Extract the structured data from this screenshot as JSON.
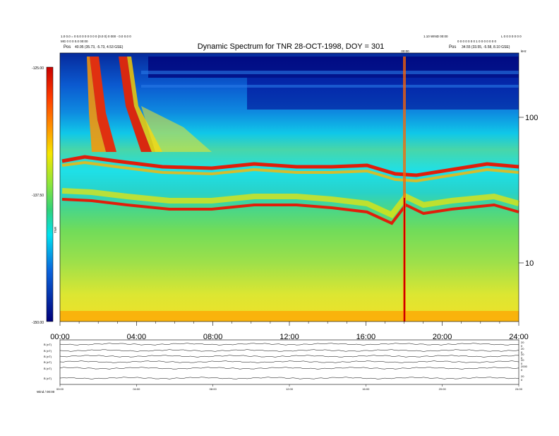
{
  "chart_data": [
    {
      "type": "heatmap",
      "title": "Dynamic Spectrum for TNR 28-OCT-1998, DOY = 301",
      "header_left_line1": "1.0 0.0 = 0 0.0 0 0 0 0 0 0 (0.0 0) 0 000 - 0.0 0.0 0",
      "header_left_line2": "MG 0 0 0 0.0 00:00",
      "header_left_pos_label": "Pos",
      "header_left_pos_value": "40.95 (35.73, -5.73, 4.53 GSE)",
      "header_right_line1": "1.10 WIND 00:00",
      "header_right_line1b": "L 0 0 0 0 0 0 0",
      "header_right_line2": "0 0 0 0 0 0 0 1 0 0 0 0 0 0 0",
      "header_right_pos_label": "Pos",
      "header_right_pos_value": "34.55 (33.55, -5.58, 8.10 GSE)",
      "marker_label": "00:00",
      "colorbar_ticks": [
        "-125.00",
        "-137.50",
        "-150.00"
      ],
      "colorbar_label": "TNR",
      "x_ticks": [
        "00:00",
        "04:00",
        "08:00",
        "12:00",
        "16:00",
        "20:00",
        "24:00"
      ],
      "xlim": [
        0,
        24
      ],
      "y_scale": "log",
      "y_unit": "kHz",
      "y_ticks": [
        "100",
        "10"
      ],
      "ylim": [
        4,
        250
      ]
    },
    {
      "type": "line",
      "panels": [
        {
          "label": "B (nT)",
          "ticks": [
            "20",
            "0"
          ]
        },
        {
          "label": "B (nT)",
          "ticks": [
            "20",
            "0"
          ]
        },
        {
          "label": "B (nT)",
          "ticks": [
            "20",
            "0"
          ]
        },
        {
          "label": "B (nT)",
          "ticks": [
            "20",
            "0"
          ]
        },
        {
          "label": "B (nT)",
          "ticks": [
            "2000",
            "0"
          ]
        },
        {
          "label": "B (nT)",
          "ticks": [
            "20",
            "0"
          ]
        }
      ],
      "x_ticks": [
        "00:00",
        "04:00",
        "08:00",
        "12:00",
        "16:00",
        "20:00",
        "24:00"
      ],
      "footer": "Wind / 00:00"
    }
  ],
  "colors": {
    "dark_blue": "#00007a",
    "blue": "#0a37d2",
    "cyan": "#00e1f0",
    "green": "#50e650",
    "yellow": "#f5e600",
    "orange": "#ff8c00",
    "red": "#dc1e0a"
  }
}
